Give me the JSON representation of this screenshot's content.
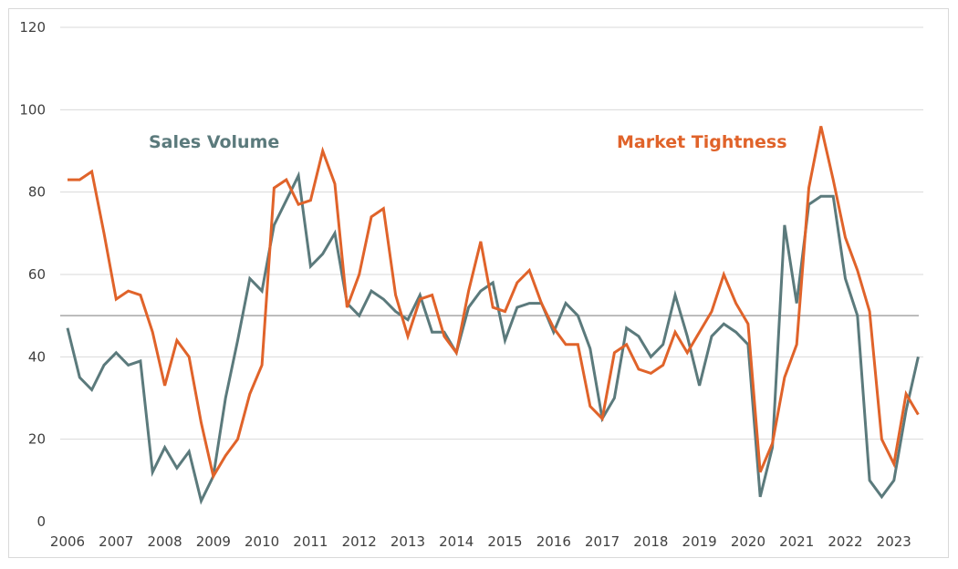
{
  "chart_data": {
    "type": "line",
    "title": "",
    "xlabel": "",
    "ylabel": "",
    "ylim": [
      0,
      120
    ],
    "yticks": [
      "0",
      "20",
      "40",
      "60",
      "80",
      "100",
      "120"
    ],
    "xticks": [
      "2006",
      "2007",
      "2008",
      "2009",
      "2010",
      "2011",
      "2012",
      "2013",
      "2014",
      "2015",
      "2016",
      "2017",
      "2018",
      "2019",
      "2020",
      "2021",
      "2022",
      "2023"
    ],
    "x_frequency": "quarterly, 2006 Q1 to 2023 Q3",
    "grid": true,
    "reference_line": 50,
    "series": [
      {
        "name": "Sales Volume",
        "color": "#5b7a7c",
        "values": [
          47,
          35,
          32,
          38,
          41,
          38,
          39,
          12,
          18,
          13,
          17,
          5,
          11,
          30,
          44,
          59,
          56,
          72,
          78,
          84,
          62,
          65,
          70,
          53,
          50,
          56,
          54,
          51,
          49,
          55,
          46,
          46,
          41,
          52,
          56,
          58,
          44,
          52,
          53,
          53,
          46,
          53,
          50,
          42,
          25,
          30,
          47,
          45,
          40,
          43,
          55,
          45,
          33,
          45,
          48,
          46,
          43,
          6,
          18,
          72,
          53,
          77,
          79,
          79,
          59,
          50,
          10,
          6,
          10,
          27,
          40
        ]
      },
      {
        "name": "Market Tightness",
        "color": "#e0632a",
        "values": [
          83,
          83,
          85,
          70,
          54,
          56,
          55,
          46,
          33,
          44,
          40,
          24,
          11,
          16,
          20,
          31,
          38,
          81,
          83,
          77,
          78,
          90,
          82,
          52,
          60,
          74,
          76,
          55,
          45,
          54,
          55,
          45,
          41,
          56,
          68,
          52,
          51,
          58,
          61,
          53,
          47,
          43,
          43,
          28,
          25,
          41,
          43,
          37,
          36,
          38,
          46,
          41,
          46,
          51,
          60,
          53,
          48,
          12,
          19,
          35,
          43,
          81,
          96,
          83,
          69,
          61,
          51,
          20,
          14,
          31,
          26
        ]
      }
    ],
    "reference_line_color": "#a6a6a6"
  }
}
